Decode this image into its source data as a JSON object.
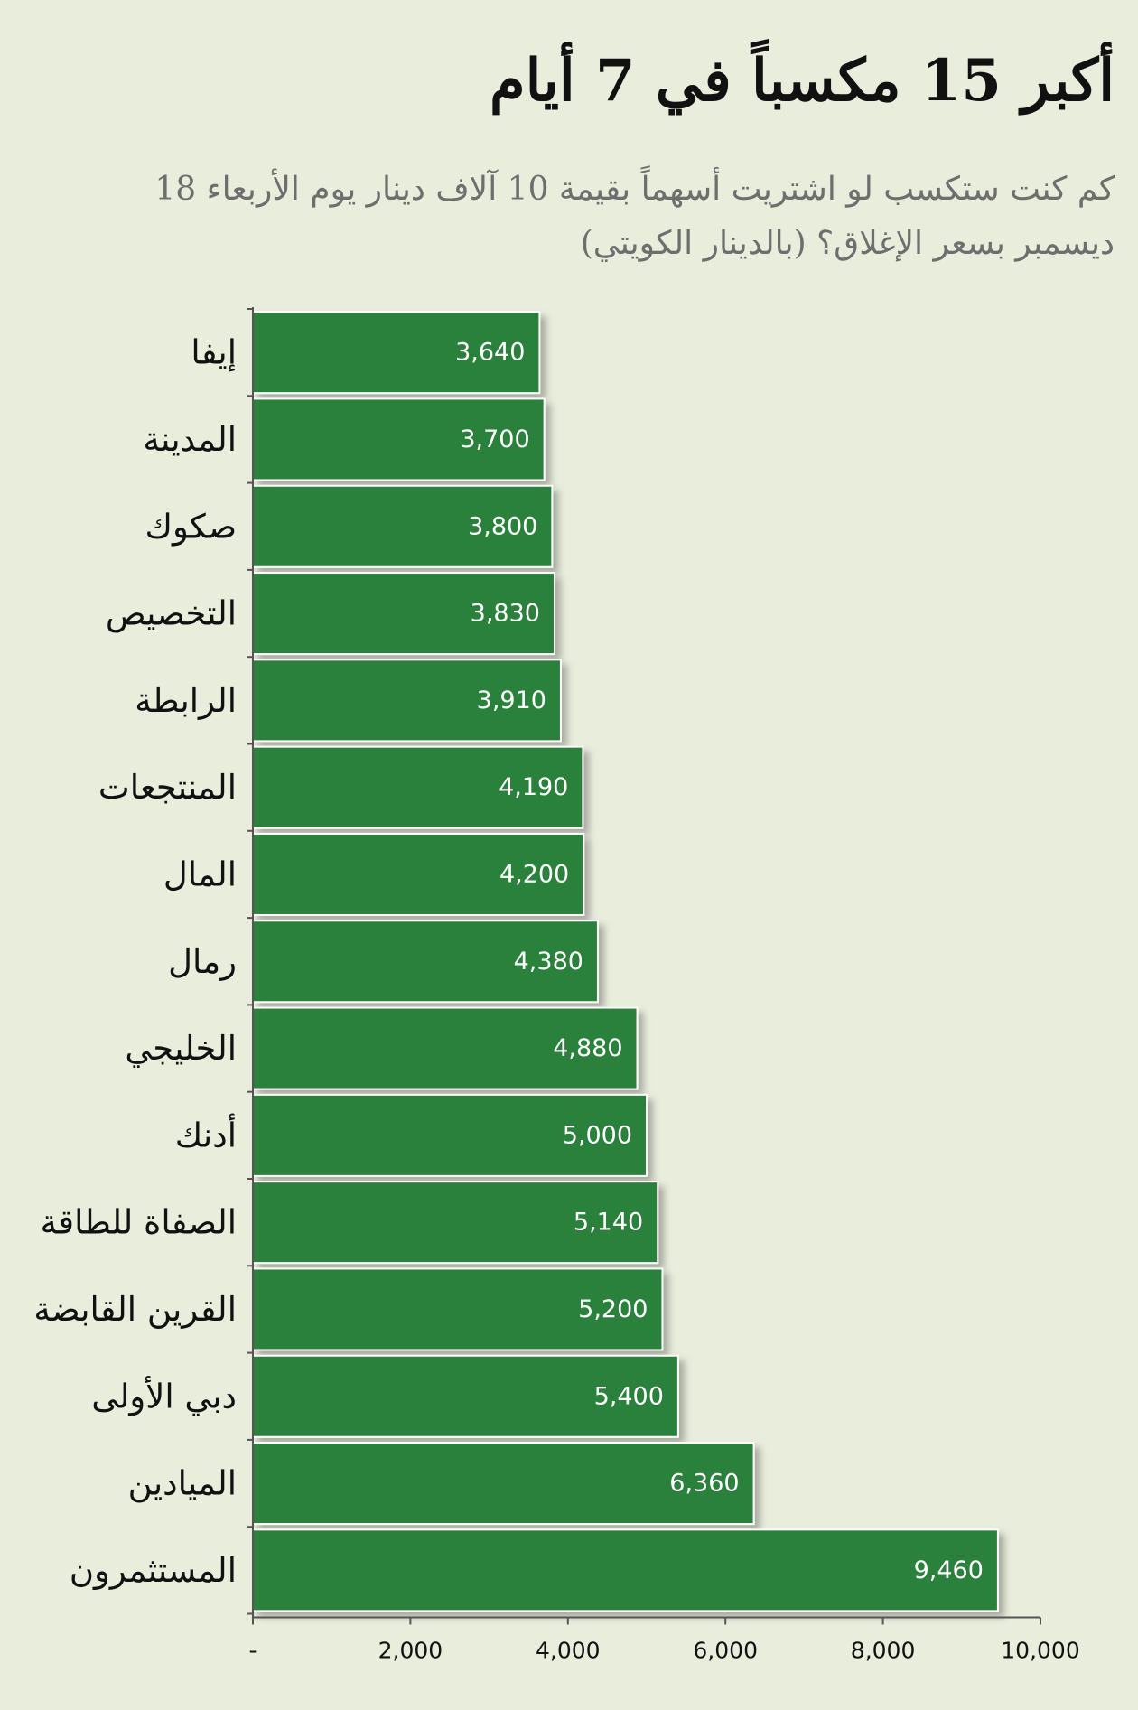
{
  "chart_data": {
    "type": "bar",
    "orientation": "horizontal",
    "title": "أكبر 15 مكسباً في 7 أيام",
    "subtitle": "كم كنت ستكسب لو اشتريت أسهماً بقيمة 10 آلاف دينار يوم الأربعاء 18 ديسمبر بسعر الإغلاق؟ (بالدينار الكويتي)",
    "categories": [
      "إيفا",
      "المدينة",
      "صكوك",
      "التخصيص",
      "الرابطة",
      "المنتجعات",
      "المال",
      "رمال",
      "الخليجي",
      "أدنك",
      "الصفاة للطاقة",
      "القرين القابضة",
      "دبي الأولى",
      "الميادين",
      "المستثمرون"
    ],
    "values": [
      3640,
      3700,
      3800,
      3830,
      3910,
      4190,
      4200,
      4380,
      4880,
      5000,
      5140,
      5200,
      5400,
      6360,
      9460
    ],
    "value_labels": [
      "3,640",
      "3,700",
      "3,800",
      "3,830",
      "3,910",
      "4,190",
      "4,200",
      "4,380",
      "4,880",
      "5,000",
      "5,140",
      "5,200",
      "5,400",
      "6,360",
      "9,460"
    ],
    "xlim": [
      0,
      10000
    ],
    "x_ticks": [
      0,
      2000,
      4000,
      6000,
      8000,
      10000
    ],
    "x_tick_labels": [
      "-",
      "2,000",
      "4,000",
      "6,000",
      "8,000",
      "10,000"
    ],
    "xlabel": "",
    "ylabel": "",
    "grid": false,
    "colors": {
      "bar": "#2b813b",
      "bar_border": "#ffffff",
      "background": "#e9eddc",
      "axis": "#555555",
      "subtitle_text": "#6e6e6e"
    }
  }
}
